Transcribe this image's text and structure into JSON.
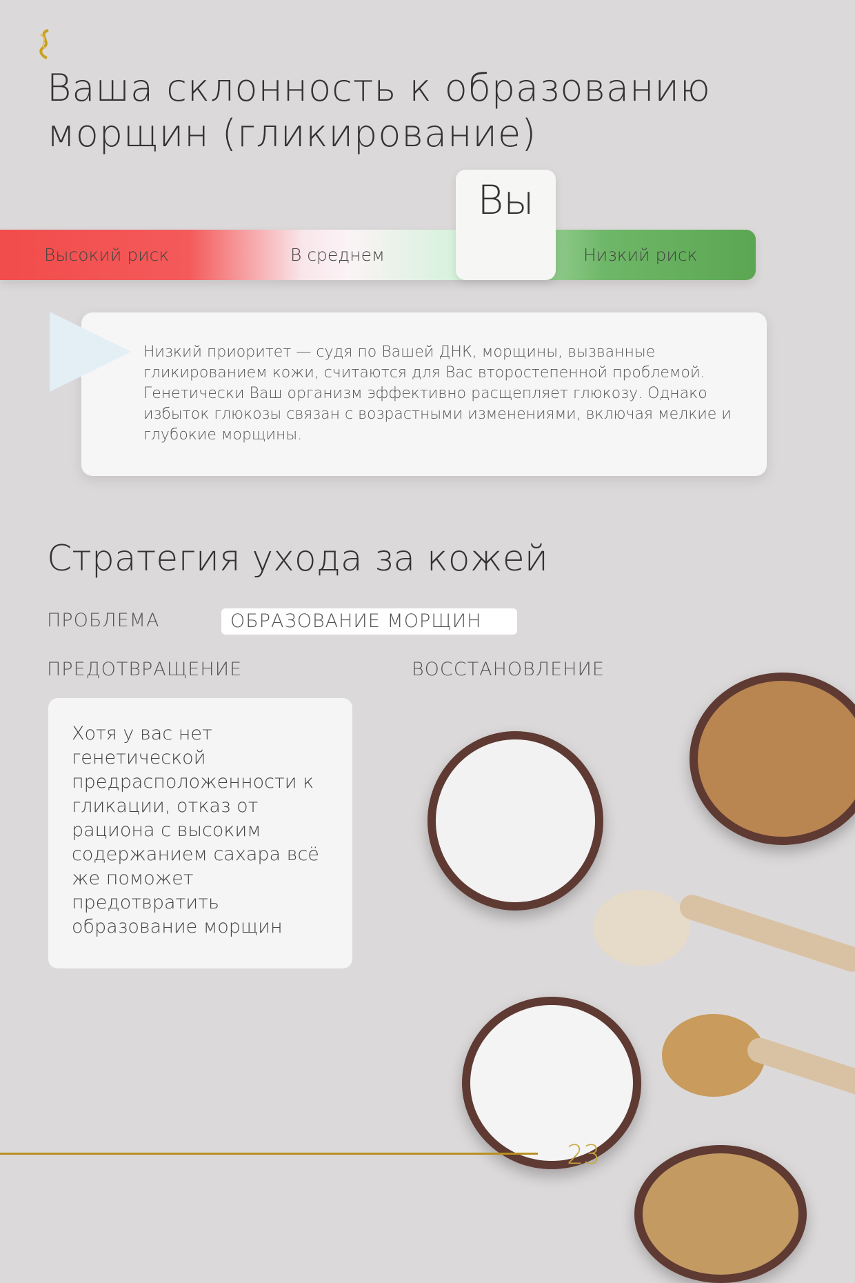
{
  "header": {
    "logo": "dna-logo",
    "title": "Ваша склонность к образованию морщин (гликирование)"
  },
  "risk_scale": {
    "high": "Высокий риск",
    "average": "В среднем",
    "low": "Низкий риск",
    "you": "Вы",
    "position": "low",
    "colors": {
      "high": "#f24c4c",
      "low": "#5ba652"
    }
  },
  "description": "Низкий приоритет — судя по Вашей ДНК, морщины, вызванные гликированием кожи, считаются для Вас второстепенной проблемой. Генетически Ваш организм эффективно расщепляет глюкозу. Однако избыток глюкозы связан с возрастными изменениями, включая мелкие и глубокие морщины.",
  "strategy": {
    "title": "Стратегия ухода за кожей",
    "problem_label": "ПРОБЛЕМА",
    "problem_value": "ОБРАЗОВАНИЕ МОРЩИН",
    "prevention_label": "ПРЕДОТВРАЩЕНИЕ",
    "recovery_label": "ВОССТАНОВЛЕНИЕ",
    "prevention_text": "Хотя у вас нет генетической предрасположенности к гликации, отказ от рациона с высоким содержанием сахара всё же поможет предотвратить образование морщин"
  },
  "footer": {
    "page_number": "23",
    "accent": "#b89020"
  }
}
